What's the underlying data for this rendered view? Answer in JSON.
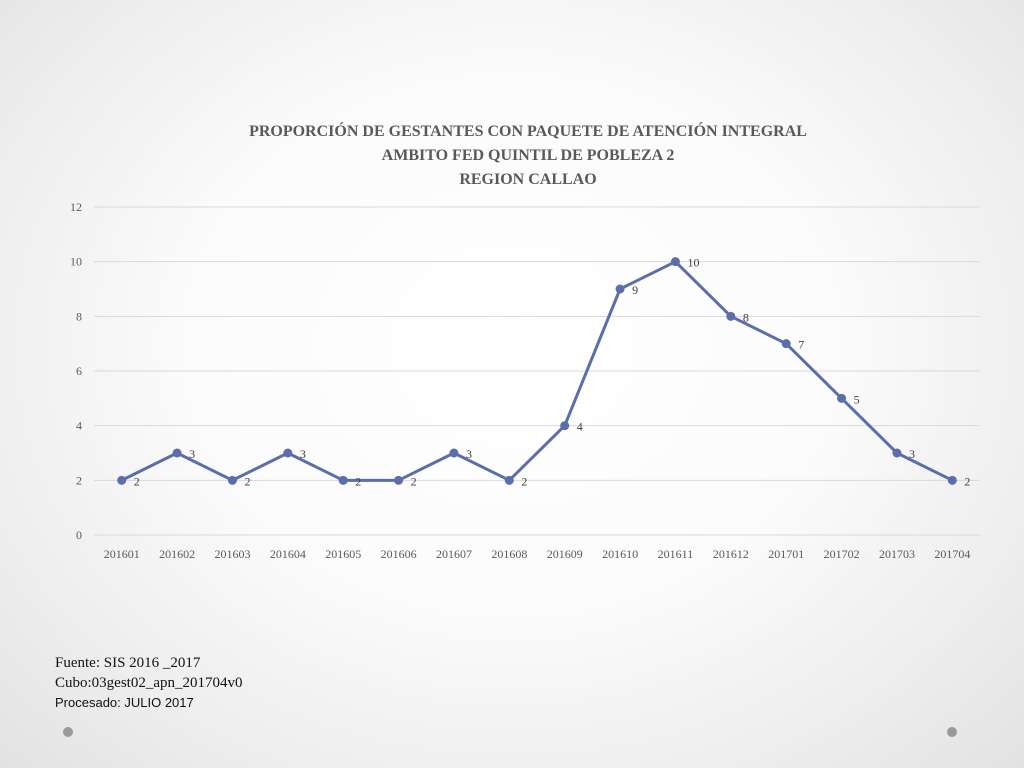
{
  "chart_data": {
    "type": "line",
    "title": [
      "PROPORCIÓN DE GESTANTES CON PAQUETE DE ATENCIÓN INTEGRAL",
      "AMBITO FED QUINTIL DE POBLEZA 2",
      "REGION CALLAO"
    ],
    "categories": [
      "201601",
      "201602",
      "201603",
      "201604",
      "201605",
      "201606",
      "201607",
      "201608",
      "201609",
      "201610",
      "201611",
      "201612",
      "201701",
      "201702",
      "201703",
      "201704"
    ],
    "series": [
      {
        "values": [
          2,
          3,
          2,
          3,
          2,
          2,
          3,
          2,
          4,
          9,
          10,
          8,
          7,
          5,
          3,
          2
        ]
      }
    ],
    "ylim": [
      0,
      12
    ],
    "yticks": [
      0,
      2,
      4,
      6,
      8,
      10,
      12
    ],
    "grid": true,
    "show_data_labels": true,
    "line_color": "#5b6ea9"
  },
  "footer": {
    "source": "Fuente: SIS 2016 _2017",
    "cube": "Cubo:03gest02_apn_201704v0",
    "processed": "Procesado: JULIO 2017"
  }
}
